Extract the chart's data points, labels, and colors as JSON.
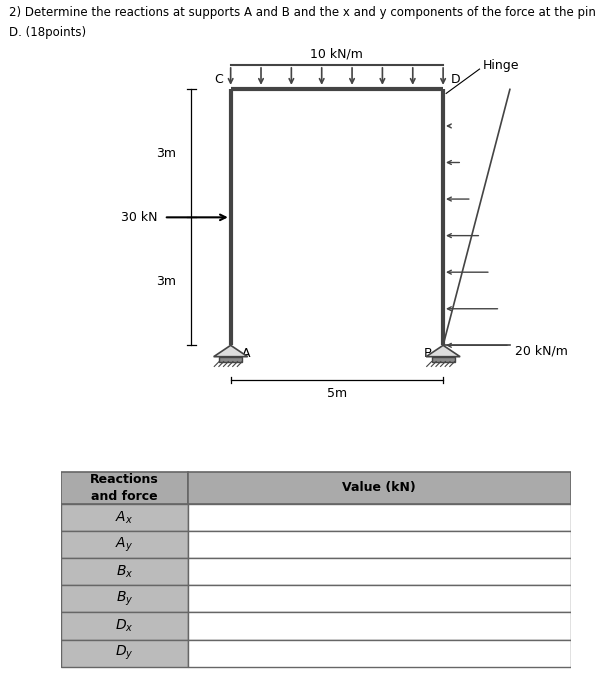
{
  "title_line1": "2) Determine the reactions at supports A and B and the x and y components of the force at the pin",
  "title_line2": "D. (18points)",
  "title_fontsize": 8.5,
  "bg_color": "#ffffff",
  "struct_color": "#444444",
  "table_header_color": "#aaaaaa",
  "table_row_color_left": "#bbbbbb",
  "table_row_color_right": "#ffffff",
  "table_border_color": "#666666",
  "table_rows": [
    "Ax",
    "Ay",
    "Bx",
    "By",
    "Dx",
    "Dy"
  ],
  "table_col_headers": [
    "Reactions\nand force",
    "Value (kN)"
  ]
}
